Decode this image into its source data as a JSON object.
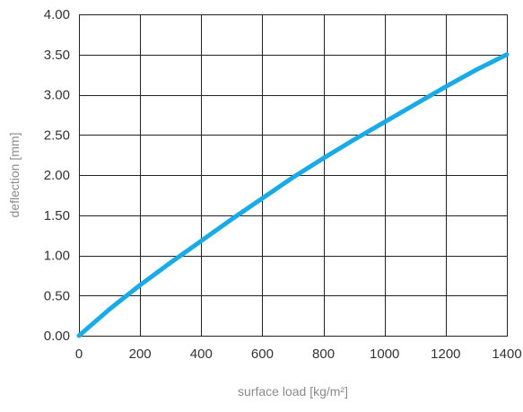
{
  "chart_data": {
    "type": "line",
    "title": "",
    "xlabel": "surface load [kg/m²]",
    "ylabel": "deflection [mm]",
    "xlim": [
      0,
      1400
    ],
    "ylim": [
      0,
      4
    ],
    "grid": true,
    "x_ticks": [
      {
        "value": 0,
        "label": "0"
      },
      {
        "value": 200,
        "label": "200"
      },
      {
        "value": 400,
        "label": "400"
      },
      {
        "value": 600,
        "label": "600"
      },
      {
        "value": 800,
        "label": "800"
      },
      {
        "value": 1000,
        "label": "1000"
      },
      {
        "value": 1200,
        "label": "1200"
      },
      {
        "value": 1400,
        "label": "1400"
      }
    ],
    "y_ticks": [
      {
        "value": 0,
        "label": "0.00"
      },
      {
        "value": 0.5,
        "label": "0.50"
      },
      {
        "value": 1,
        "label": "1.00"
      },
      {
        "value": 1.5,
        "label": "1.50"
      },
      {
        "value": 2,
        "label": "2.00"
      },
      {
        "value": 2.5,
        "label": "2.50"
      },
      {
        "value": 3,
        "label": "3.00"
      },
      {
        "value": 3.5,
        "label": "3.50"
      },
      {
        "value": 4,
        "label": "4.00"
      }
    ],
    "series": [
      {
        "color": "#1aaae6",
        "x": [
          0,
          100,
          200,
          300,
          400,
          500,
          600,
          700,
          800,
          900,
          1000,
          1100,
          1200,
          1300,
          1400
        ],
        "y": [
          0,
          0.33,
          0.63,
          0.91,
          1.18,
          1.45,
          1.71,
          1.97,
          2.21,
          2.44,
          2.66,
          2.88,
          3.1,
          3.31,
          3.5
        ]
      }
    ]
  }
}
